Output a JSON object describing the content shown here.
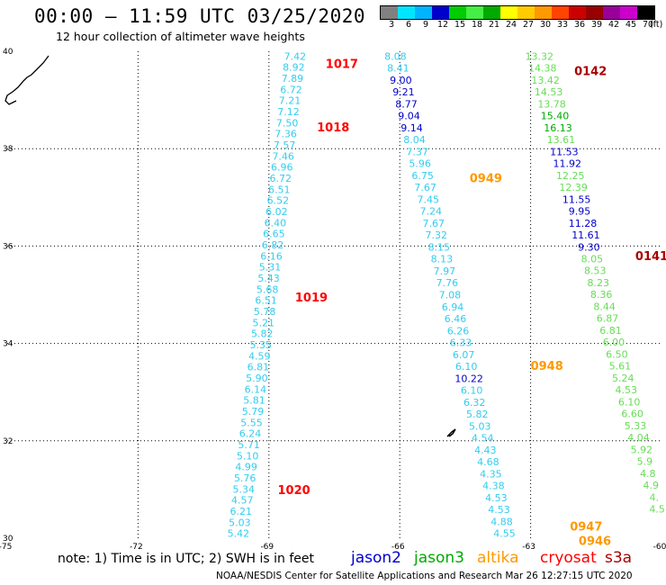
{
  "header": {
    "title": "00:00 – 11:59 UTC 03/25/2020",
    "subtitle": "12 hour collection of altimeter wave heights"
  },
  "legend": {
    "colors": [
      "#808080",
      "#00e5ff",
      "#00b4ff",
      "#0000cc",
      "#00cc00",
      "#44ee44",
      "#00aa00",
      "#ffff00",
      "#ffcc00",
      "#ff9900",
      "#ff4400",
      "#cc0000",
      "#990000",
      "#990099",
      "#cc00cc",
      "#000000"
    ],
    "labels": [
      "3",
      "6",
      "9",
      "12",
      "15",
      "18",
      "21",
      "24",
      "27",
      "30",
      "33",
      "36",
      "39",
      "42",
      "45",
      "70",
      "(ft)"
    ]
  },
  "footer": {
    "note": "note:  1) Time is in UTC;  2) SWH is in feet",
    "satellites": [
      {
        "name": "jason2",
        "color": "#0000cc"
      },
      {
        "name": "jason3",
        "color": "#00aa00"
      },
      {
        "name": "altika",
        "color": "#ff9900"
      },
      {
        "name": "cryosat",
        "color": "#ff0000"
      },
      {
        "name": "s3a",
        "color": "#aa0000"
      }
    ],
    "credit": "NOAA/NESDIS Center for Satellite Applications and Research    Mar 26 12:27:15 UTC 2020"
  },
  "chart_data": {
    "type": "scatter",
    "xlim": [
      -75,
      -60
    ],
    "ylim": [
      30,
      40
    ],
    "x_ticks": [
      "-75",
      "-72",
      "-69",
      "-66",
      "-63",
      "-60"
    ],
    "y_ticks": [
      "30",
      "32",
      "34",
      "36",
      "38",
      "40"
    ],
    "grid": true,
    "units": "ft",
    "tracks": [
      {
        "color": "#33ccee",
        "x_start": -68.4,
        "y_start": 39.9,
        "x_end": -69.7,
        "y_end": 30.1,
        "values": [
          "7.42",
          "8.92",
          "7.89",
          "6.72",
          "7.21",
          "7.12",
          "7.50",
          "7.36",
          "7.57",
          "7.46",
          "6.96",
          "6.72",
          "6.51",
          "6.52",
          "6.02",
          "6.40",
          "6.65",
          "6.82",
          "6.16",
          "5.31",
          "5.43",
          "5.68",
          "6.51",
          "5.78",
          "5.21",
          "5.82",
          "5.35",
          "4.59",
          "6.81",
          "5.90",
          "6.14",
          "5.81",
          "5.79",
          "5.55",
          "6.24",
          "5.71",
          "5.10",
          "4.99",
          "5.76",
          "5.34",
          "4.57",
          "6.21",
          "5.03",
          "5.42"
        ]
      },
      {
        "color": "#33ccee",
        "x_start": -66.1,
        "y_start": 39.9,
        "x_end": -63.6,
        "y_end": 30.1,
        "values": [
          "8.08",
          "8.41",
          "9.00",
          "9.21",
          "8.77",
          "9.04",
          "9.14",
          "8.04",
          "7.37",
          "5.96",
          "6.75",
          "7.67",
          "7.45",
          "7.24",
          "7.67",
          "7.32",
          "8.15",
          "8.13",
          "7.97",
          "7.76",
          "7.08",
          "6.94",
          "6.46",
          "6.26",
          "6.33",
          "6.07",
          "6.10",
          "10.22",
          "6.10",
          "6.32",
          "5.82",
          "5.03",
          "4.54",
          "4.43",
          "4.68",
          "4.35",
          "4.38",
          "4.53",
          "4.53",
          "4.88",
          "4.55"
        ]
      },
      {
        "color": "#66dd55",
        "x_start": -62.8,
        "y_start": 39.9,
        "x_end": -60.1,
        "y_end": 30.6,
        "values": [
          "13.32",
          "14.38",
          "13.42",
          "14.53",
          "13.78",
          "15.40",
          "16.13",
          "13.61",
          "11.53",
          "11.92",
          "12.25",
          "12.39",
          "11.55",
          "9.95",
          "11.28",
          "11.61",
          "9.30",
          "8.05",
          "8.53",
          "8.23",
          "8.36",
          "8.44",
          "6.87",
          "6.81",
          "6.00",
          "6.50",
          "5.61",
          "5.24",
          "4.53",
          "6.10",
          "6.60",
          "5.33",
          "4.04",
          "5.92",
          "5.9",
          "4.8",
          "4.9",
          "4.",
          "4.5"
        ]
      }
    ],
    "value_colors": {
      "8.08": "#33ccee",
      "8.41": "#33ccee",
      "9.00": "#0000cc",
      "9.21": "#0000cc",
      "8.77": "#0000cc",
      "9.04": "#0000cc",
      "9.14": "#0000cc",
      "13.32": "#66dd55",
      "14.38": "#66dd55",
      "13.42": "#66dd55",
      "14.53": "#66dd55",
      "13.78": "#66dd55",
      "15.40": "#00aa00",
      "16.13": "#00aa00",
      "13.61": "#66dd55",
      "11.53": "#0000cc",
      "11.92": "#0000cc",
      "12.25": "#66dd55",
      "12.39": "#66dd55",
      "11.55": "#0000cc",
      "9.95": "#0000cc",
      "11.28": "#0000cc",
      "11.61": "#0000cc",
      "9.30": "#0000cc",
      "10.22": "#0000cc"
    },
    "annotations": [
      {
        "text": "1017",
        "x": -67.7,
        "y": 39.75,
        "color": "#ff0000"
      },
      {
        "text": "1018",
        "x": -67.9,
        "y": 38.45,
        "color": "#ff0000"
      },
      {
        "text": "1019",
        "x": -68.4,
        "y": 34.95,
        "color": "#ff0000"
      },
      {
        "text": "1020",
        "x": -68.8,
        "y": 31.0,
        "color": "#ff0000"
      },
      {
        "text": "0142",
        "x": -62.0,
        "y": 39.6,
        "color": "#aa0000"
      },
      {
        "text": "0141",
        "x": -60.6,
        "y": 35.8,
        "color": "#aa0000"
      },
      {
        "text": "0949",
        "x": -64.4,
        "y": 37.4,
        "color": "#ff9900"
      },
      {
        "text": "0948",
        "x": -63.0,
        "y": 33.55,
        "color": "#ff9900"
      },
      {
        "text": "0947",
        "x": -62.1,
        "y": 30.25,
        "color": "#ff9900"
      },
      {
        "text": "0946",
        "x": -61.9,
        "y": 29.95,
        "color": "#ff9900"
      }
    ]
  }
}
